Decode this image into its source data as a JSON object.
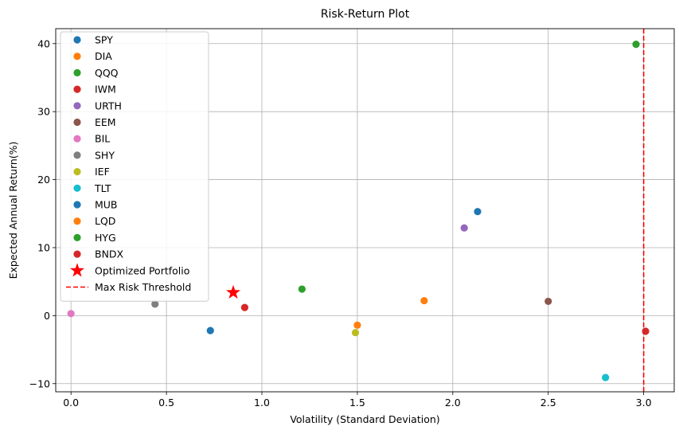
{
  "chart_data": {
    "type": "scatter",
    "title": "Risk-Return Plot",
    "xlabel": "Volatility (Standard Deviation)",
    "ylabel": "Expected Annual Return(%)",
    "xlim": [
      -0.08,
      3.16
    ],
    "ylim": [
      -11.2,
      42.2
    ],
    "xticks": [
      0.0,
      0.5,
      1.0,
      1.5,
      2.0,
      2.5,
      3.0
    ],
    "xtick_labels": [
      "0.0",
      "0.5",
      "1.0",
      "1.5",
      "2.0",
      "2.5",
      "3.0"
    ],
    "yticks": [
      -10,
      0,
      10,
      20,
      30,
      40
    ],
    "ytick_labels": [
      "−10",
      "0",
      "10",
      "20",
      "30",
      "40"
    ],
    "grid": true,
    "legend_position": "top-left",
    "series": [
      {
        "name": "SPY",
        "color": "#1f77b4",
        "x": 2.13,
        "y": 15.3
      },
      {
        "name": "DIA",
        "color": "#ff7f0e",
        "x": 1.5,
        "y": -1.4
      },
      {
        "name": "QQQ",
        "color": "#2ca02c",
        "x": 2.96,
        "y": 39.9
      },
      {
        "name": "IWM",
        "color": "#d62728",
        "x": 3.01,
        "y": -2.3
      },
      {
        "name": "URTH",
        "color": "#9467bd",
        "x": 2.06,
        "y": 12.9
      },
      {
        "name": "EEM",
        "color": "#8c564b",
        "x": 2.5,
        "y": 2.1
      },
      {
        "name": "BIL",
        "color": "#e377c2",
        "x": 0.0,
        "y": 0.3
      },
      {
        "name": "SHY",
        "color": "#7f7f7f",
        "x": 0.44,
        "y": 1.7
      },
      {
        "name": "IEF",
        "color": "#bcbd22",
        "x": 1.49,
        "y": -2.5
      },
      {
        "name": "TLT",
        "color": "#17becf",
        "x": 2.8,
        "y": -9.1
      },
      {
        "name": "MUB",
        "color": "#1f77b4",
        "x": 0.73,
        "y": -2.2
      },
      {
        "name": "LQD",
        "color": "#ff7f0e",
        "x": 1.85,
        "y": 2.2
      },
      {
        "name": "HYG",
        "color": "#2ca02c",
        "x": 1.21,
        "y": 3.9
      },
      {
        "name": "BNDX",
        "color": "#d62728",
        "x": 0.91,
        "y": 1.2
      }
    ],
    "optimized_portfolio": {
      "name": "Optimized Portfolio",
      "color": "#ff0000",
      "marker": "star",
      "x": 0.85,
      "y": 3.4
    },
    "max_risk_threshold": {
      "name": "Max Risk Threshold",
      "color": "#ff0000",
      "style": "dashed",
      "x": 3.0
    }
  }
}
